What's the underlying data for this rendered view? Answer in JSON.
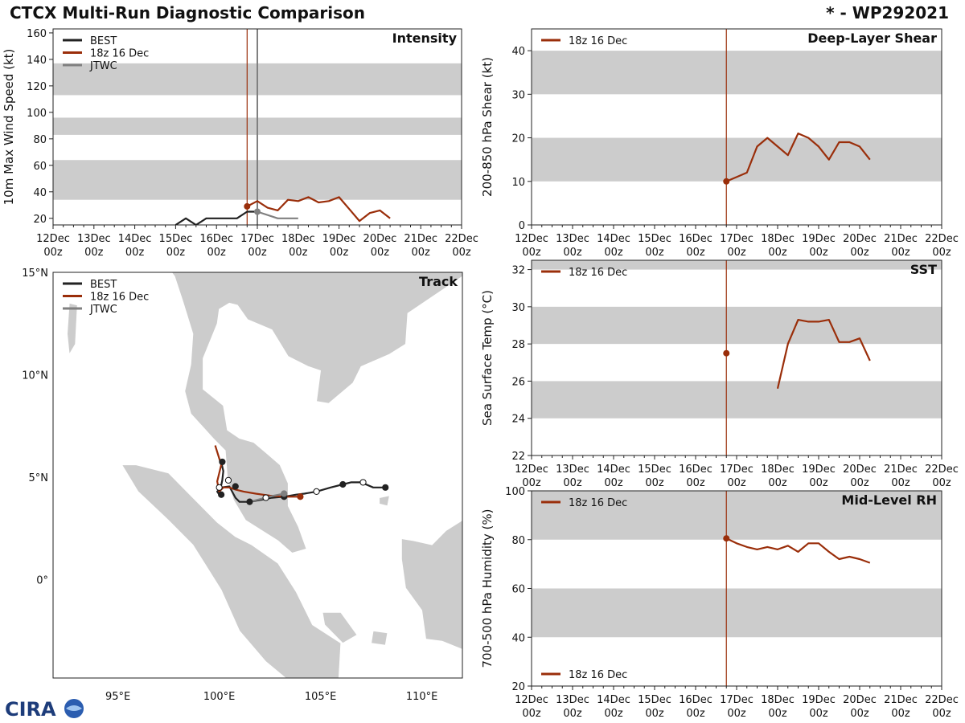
{
  "title": "CTCX Multi-Run Diagnostic Comparison",
  "storm": "* - WP292021",
  "logo_text": "CIRA",
  "colors": {
    "best": "#222222",
    "run": "#9a2e0a",
    "jtwc": "#808080",
    "band": "#cccccc",
    "land": "#cccccc"
  },
  "time_axis": {
    "tick_labels": [
      [
        "12Dec",
        "00z"
      ],
      [
        "13Dec",
        "00z"
      ],
      [
        "14Dec",
        "00z"
      ],
      [
        "15Dec",
        "00z"
      ],
      [
        "16Dec",
        "00z"
      ],
      [
        "17Dec",
        "00z"
      ],
      [
        "18Dec",
        "00z"
      ],
      [
        "19Dec",
        "00z"
      ],
      [
        "20Dec",
        "00z"
      ],
      [
        "21Dec",
        "00z"
      ],
      [
        "22Dec",
        "00z"
      ]
    ]
  },
  "chart_data": [
    {
      "id": "intensity",
      "type": "line",
      "title": "Intensity",
      "ylabel": "10m Max Wind Speed (kt)",
      "xlim_days": [
        0,
        10
      ],
      "ylim": [
        15,
        163
      ],
      "yticks": [
        20,
        40,
        60,
        80,
        100,
        120,
        140,
        160
      ],
      "bands": [
        [
          34,
          64
        ],
        [
          83,
          96
        ],
        [
          113,
          137
        ]
      ],
      "vlines": [
        {
          "series": "run",
          "day": 4.75
        },
        {
          "series": "jtwc",
          "day": 5.0
        }
      ],
      "legend": [
        "BEST",
        "18z 16 Dec",
        "JTWC"
      ],
      "series": [
        {
          "name": "BEST",
          "key": "best",
          "x": [
            3.0,
            3.25,
            3.5,
            3.75,
            4.0,
            4.25,
            4.5,
            4.75,
            5.0
          ],
          "y": [
            15,
            20,
            15,
            20,
            20,
            20,
            20,
            25,
            25
          ]
        },
        {
          "name": "18z 16 Dec",
          "key": "run",
          "x": [
            4.75,
            5.0,
            5.25,
            5.5,
            5.75,
            6.0,
            6.25,
            6.5,
            6.75,
            7.0,
            7.25,
            7.5,
            7.75,
            8.0,
            8.25
          ],
          "y": [
            29,
            33,
            28,
            26,
            34,
            33,
            36,
            32,
            33,
            36,
            27,
            18,
            24,
            26,
            20
          ],
          "start_marker": true
        },
        {
          "name": "JTWC",
          "key": "jtwc",
          "x": [
            5.0,
            5.5,
            6.0
          ],
          "y": [
            25,
            20,
            20
          ],
          "start_marker": true
        }
      ]
    },
    {
      "id": "shear",
      "type": "line",
      "title": "Deep-Layer Shear",
      "ylabel": "200-850 hPa Shear (kt)",
      "xlim_days": [
        0,
        10
      ],
      "ylim": [
        0,
        45
      ],
      "yticks": [
        0,
        10,
        20,
        30,
        40
      ],
      "bands": [
        [
          10,
          20
        ],
        [
          30,
          40
        ]
      ],
      "vlines": [
        {
          "series": "run",
          "day": 4.75
        }
      ],
      "legend": [
        "18z 16 Dec"
      ],
      "series": [
        {
          "name": "18z 16 Dec",
          "key": "run",
          "x": [
            4.75,
            5.0,
            5.25,
            5.5,
            5.75,
            6.0,
            6.25,
            6.5,
            6.75,
            7.0,
            7.25,
            7.5,
            7.75,
            8.0,
            8.25
          ],
          "y": [
            10,
            11,
            12,
            18,
            20,
            18,
            16,
            21,
            20,
            18,
            15,
            19,
            19,
            18,
            15
          ],
          "start_marker": true
        }
      ]
    },
    {
      "id": "sst",
      "type": "line",
      "title": "SST",
      "ylabel": "Sea Surface Temp (°C)",
      "xlim_days": [
        0,
        10
      ],
      "ylim": [
        22,
        32.5
      ],
      "yticks": [
        22,
        24,
        26,
        28,
        30,
        32
      ],
      "bands": [
        [
          24,
          26
        ],
        [
          28,
          30
        ],
        [
          32,
          32.5
        ]
      ],
      "vlines": [
        {
          "series": "run",
          "day": 4.75
        }
      ],
      "legend": [
        "18z 16 Dec"
      ],
      "series": [
        {
          "name": "18z 16 Dec",
          "key": "run",
          "x": [
            4.75
          ],
          "y": [
            27.5
          ],
          "start_marker": true
        },
        {
          "name": "18z 16 Dec",
          "key": "run",
          "x": [
            6.0,
            6.25,
            6.5,
            6.75,
            7.0,
            7.25,
            7.5,
            7.75,
            8.0,
            8.25
          ],
          "y": [
            25.6,
            28.0,
            29.3,
            29.2,
            29.2,
            29.3,
            28.1,
            28.1,
            28.3,
            27.1
          ]
        }
      ]
    },
    {
      "id": "rh",
      "type": "line",
      "title": "Mid-Level RH",
      "ylabel": "700-500 hPa Humidity (%)",
      "xlim_days": [
        0,
        10
      ],
      "ylim": [
        20,
        100
      ],
      "yticks": [
        20,
        40,
        60,
        80,
        100
      ],
      "bands": [
        [
          40,
          60
        ],
        [
          80,
          100
        ]
      ],
      "vlines": [
        {
          "series": "run",
          "day": 4.75
        }
      ],
      "legend": [
        "18z 16 Dec"
      ],
      "series": [
        {
          "name": "18z 16 Dec",
          "key": "run",
          "x": [
            4.75,
            5.0,
            5.25,
            5.5,
            5.75,
            6.0,
            6.25,
            6.5,
            6.75,
            7.0,
            7.25,
            7.5,
            7.75,
            8.0,
            8.25
          ],
          "y": [
            80.5,
            78.5,
            77,
            76,
            77,
            76,
            77.5,
            75,
            78.5,
            78.5,
            75,
            72,
            73,
            72,
            70.5
          ],
          "start_marker": true
        }
      ]
    },
    {
      "id": "track",
      "type": "scatter",
      "title": "Track",
      "xlim": [
        91.8,
        112
      ],
      "ylim": [
        -4.8,
        15
      ],
      "xtick_values": [
        95,
        100,
        105,
        110
      ],
      "xtick_labels": [
        "95°E",
        "100°E",
        "105°E",
        "110°E"
      ],
      "ytick_values": [
        0,
        5,
        10,
        15
      ],
      "ytick_labels": [
        "0°",
        "5°N",
        "10°N",
        "15°N"
      ],
      "legend": [
        "BEST",
        "18z 16 Dec",
        "JTWC"
      ],
      "series": [
        {
          "name": "BEST",
          "key": "best",
          "lon": [
            108.2,
            107.6,
            107.0,
            106.5,
            106.1,
            105.5,
            104.8,
            104.2,
            103.8,
            103.2,
            102.6,
            102.1,
            101.5,
            101.0,
            100.8,
            100.5,
            100.1,
            99.9,
            100.0,
            100.15,
            100.2,
            100.1
          ],
          "lat": [
            4.5,
            4.5,
            4.75,
            4.75,
            4.65,
            4.5,
            4.3,
            4.2,
            4.15,
            4.05,
            4.0,
            3.9,
            3.8,
            3.8,
            4.0,
            4.55,
            4.5,
            4.3,
            4.15,
            4.85,
            5.3,
            5.75
          ],
          "markers": [
            [
              108.2,
              4.5,
              "filled"
            ],
            [
              107.1,
              4.75,
              "open"
            ],
            [
              106.1,
              4.65,
              "filled"
            ],
            [
              104.8,
              4.3,
              "open"
            ],
            [
              103.2,
              4.05,
              "filled"
            ],
            [
              102.3,
              4.0,
              "open"
            ],
            [
              101.5,
              3.8,
              "filled"
            ],
            [
              100.8,
              4.55,
              "filled"
            ],
            [
              100.45,
              4.85,
              "open"
            ],
            [
              100.0,
              4.5,
              "open"
            ],
            [
              100.1,
              4.15,
              "filled"
            ],
            [
              100.15,
              5.75,
              "filled"
            ]
          ]
        },
        {
          "name": "18z 16 Dec",
          "key": "run",
          "lon": [
            104.0,
            103.2,
            102.5,
            101.8,
            101.2,
            100.8,
            100.5,
            100.2,
            100.0,
            99.9,
            100.1,
            99.8
          ],
          "lat": [
            4.05,
            4.05,
            4.1,
            4.2,
            4.3,
            4.4,
            4.5,
            4.5,
            4.3,
            4.8,
            5.6,
            6.55
          ],
          "markers": [
            [
              104.0,
              4.05,
              "filled"
            ]
          ]
        },
        {
          "name": "JTWC",
          "key": "jtwc",
          "lon": [
            103.2,
            102.7,
            101.9,
            101.5
          ],
          "lat": [
            4.2,
            4.1,
            3.9,
            3.8
          ],
          "markers": [
            [
              103.2,
              4.2,
              "filled"
            ]
          ]
        }
      ]
    }
  ]
}
